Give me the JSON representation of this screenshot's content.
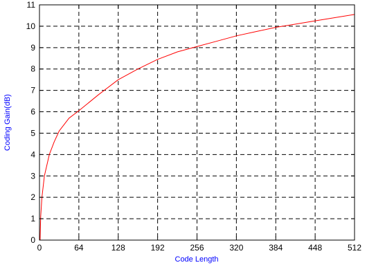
{
  "chart_data": {
    "type": "line",
    "title": "",
    "xlabel": "Code Length",
    "ylabel": "Coding Gain(dB)",
    "xlim": [
      0,
      512
    ],
    "ylim": [
      0,
      11
    ],
    "xticks": [
      0,
      64,
      128,
      192,
      256,
      320,
      384,
      448,
      512
    ],
    "yticks": [
      0,
      1,
      2,
      3,
      4,
      5,
      6,
      7,
      8,
      9,
      10,
      11
    ],
    "grid": true,
    "grid_style": "dashed",
    "legend": "none",
    "series": [
      {
        "color": "#ff0000",
        "x": [
          1,
          2,
          4,
          8,
          16,
          24,
          32,
          48,
          64,
          96,
          128,
          160,
          192,
          224,
          256,
          288,
          320,
          352,
          384,
          416,
          448,
          480,
          512
        ],
        "y": [
          0.0,
          1.1,
          2.0,
          3.0,
          4.0,
          4.6,
          5.1,
          5.7,
          6.05,
          6.8,
          7.5,
          8.0,
          8.45,
          8.8,
          9.05,
          9.3,
          9.55,
          9.75,
          9.95,
          10.1,
          10.25,
          10.4,
          10.55
        ]
      }
    ]
  }
}
